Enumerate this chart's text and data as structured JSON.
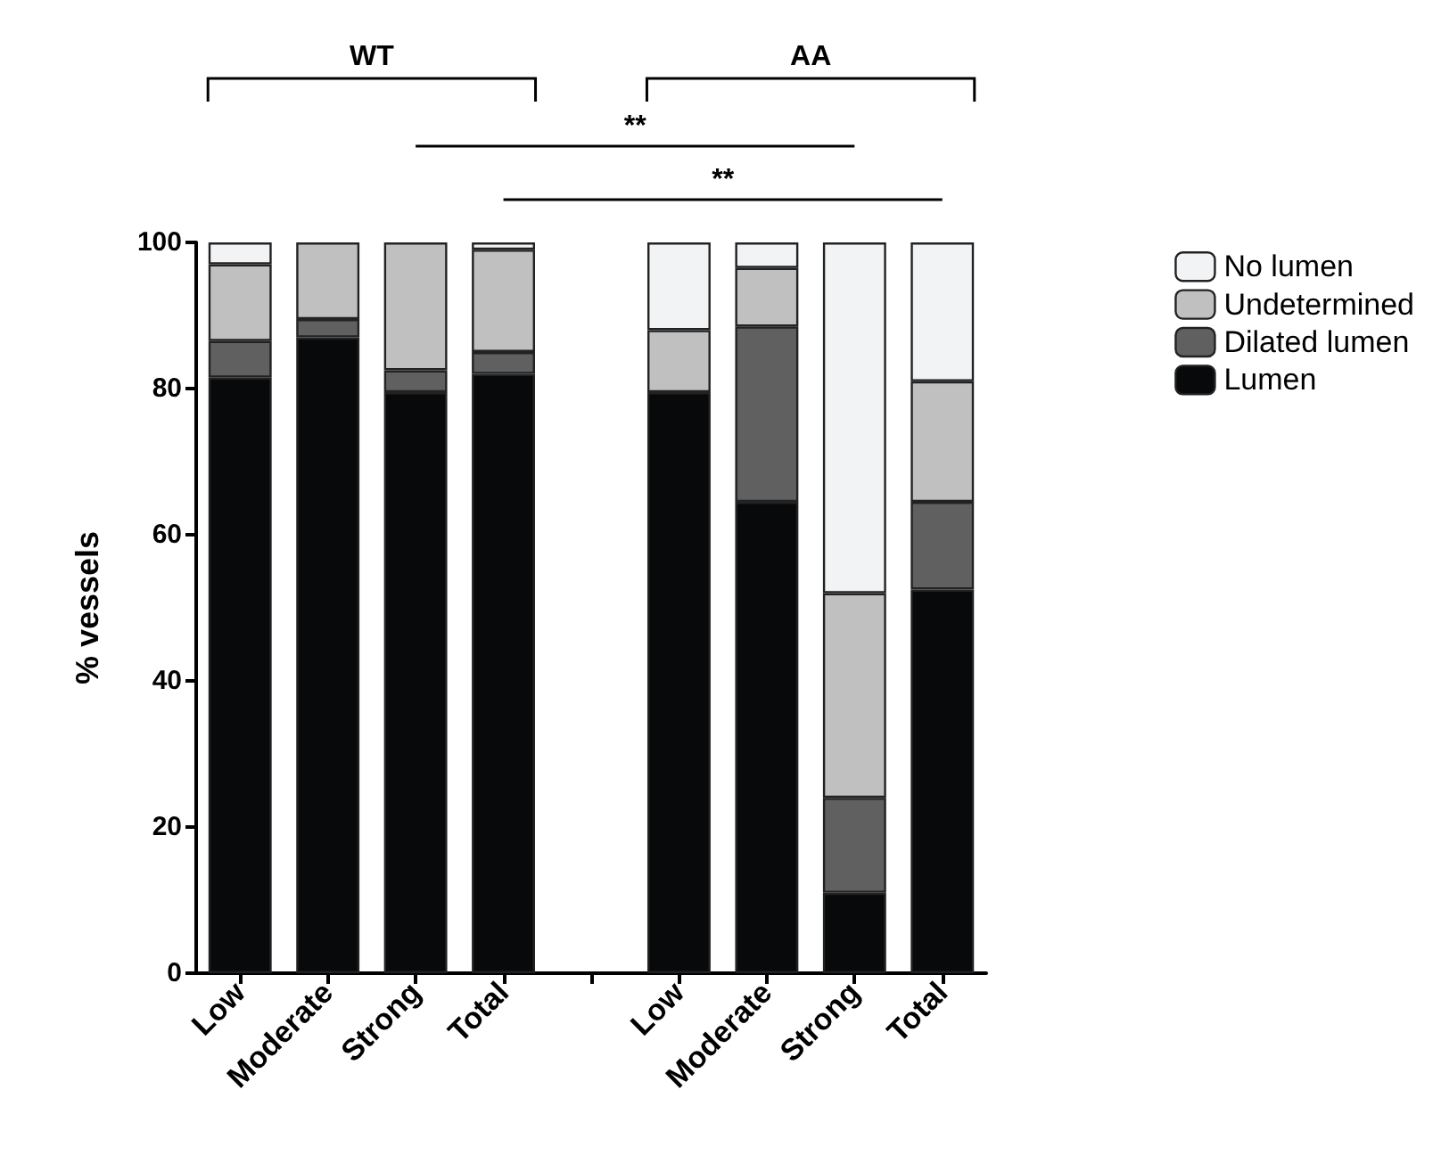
{
  "chart_data": {
    "type": "bar",
    "stacked": true,
    "ylabel": "% vessels",
    "categories": [
      "Low",
      "Moderate",
      "Strong",
      "Total",
      null,
      "Low",
      "Moderate",
      "Strong",
      "Total"
    ],
    "series": [
      {
        "name": "Lumen",
        "color": "#08090b",
        "values": [
          81.5,
          87,
          79.5,
          82,
          null,
          79.5,
          64.5,
          11,
          52.5
        ]
      },
      {
        "name": "Dilated lumen",
        "color": "#606060",
        "values": [
          5,
          2.5,
          3,
          3,
          null,
          0,
          24,
          13,
          12
        ]
      },
      {
        "name": "Undetermined",
        "color": "#c0c0c0",
        "values": [
          10.5,
          10.5,
          17.5,
          14,
          null,
          8.5,
          8,
          28,
          16.5
        ]
      },
      {
        "name": "No lumen",
        "color": "#f2f3f5",
        "values": [
          3,
          0,
          0,
          1,
          null,
          12,
          3.5,
          48,
          19
        ]
      }
    ],
    "ylim": [
      0,
      100
    ],
    "yticks": [
      0,
      20,
      40,
      60,
      80,
      100
    ],
    "grid": false,
    "legend": "top right",
    "annotations": [
      "WT",
      "AA",
      "**",
      "**"
    ]
  }
}
